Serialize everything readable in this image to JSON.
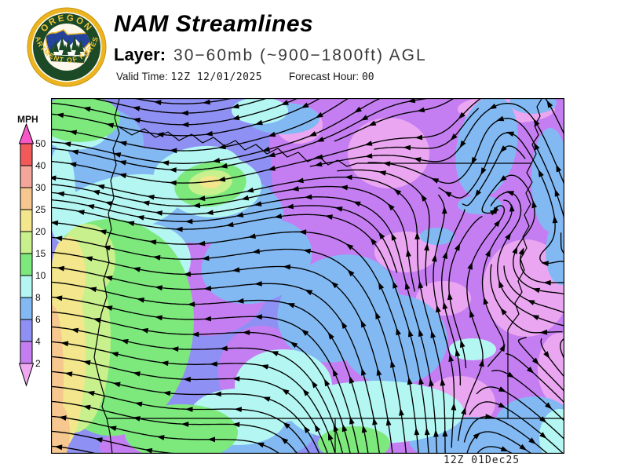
{
  "header": {
    "title": "NAM Streamlines",
    "layer_label": "Layer:",
    "layer_value": "30−60mb (~900−1800ft) AGL",
    "valid_time_label": "Valid Time:",
    "valid_time_value": "12Z 12/01/2025",
    "forecast_hour_label": "Forecast Hour:",
    "forecast_hour_value": "00"
  },
  "logo": {
    "top_text": "OREGON",
    "bottom_text": "DEPARTMENT OF FORESTRY",
    "colors": {
      "ring_gold": "#edb421",
      "ring_green": "#1d4a26",
      "text_gold": "#f0c53a",
      "inner_bg": "#fdf8ea",
      "state_blue": "#24439c",
      "mountain_white": "#ffffff",
      "tree_green": "#1d4a26"
    }
  },
  "legend": {
    "title": "MPH",
    "tick_labels": [
      "50",
      "40",
      "30",
      "25",
      "20",
      "15",
      "10",
      "8",
      "6",
      "4",
      "2"
    ],
    "tick_values": [
      50,
      40,
      30,
      25,
      20,
      15,
      10,
      8,
      6,
      4,
      2
    ],
    "segment_colors_top_to_bottom": [
      "#f4595a",
      "#f5a69b",
      "#f6c78e",
      "#f3e68c",
      "#c8f08c",
      "#7de97c",
      "#b4f7f2",
      "#82b9f3",
      "#8f90f3",
      "#c57ef2"
    ],
    "over_color": "#f957c8",
    "under_color": "#efa9f2"
  },
  "map": {
    "timestamp": "12Z 01Dec25",
    "line_color": "#000000",
    "field_colors": {
      "base": "#8f90f3",
      "orchid": "#c57ef2",
      "plum": "#eba6f1",
      "lightblue": "#82b9f3",
      "cyan": "#b4f7f2",
      "green": "#7de97c",
      "yellowgreen": "#c8f08c",
      "yellow": "#f3e68c",
      "orange": "#f6c78e"
    }
  }
}
